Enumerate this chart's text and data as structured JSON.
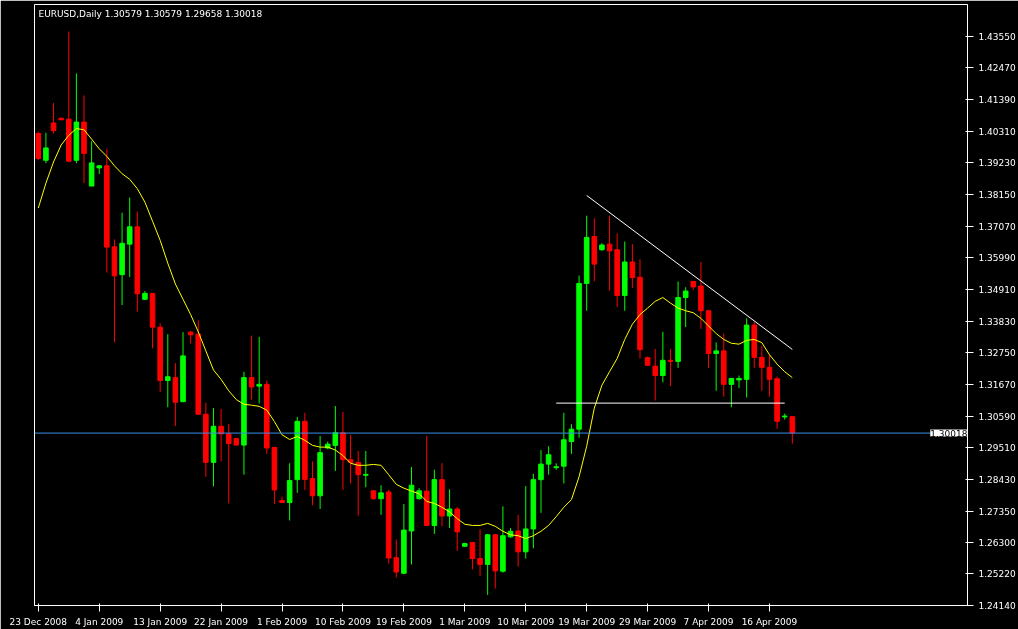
{
  "chart_data": {
    "type": "candlestick",
    "title": "EURUSD,Daily  1.30579 1.30579 1.29658 1.30018",
    "categories": [
      "23 Dec 2008",
      null,
      null,
      null,
      null,
      null,
      null,
      null,
      "4 Jan 2009",
      null,
      null,
      null,
      null,
      null,
      null,
      null,
      "13 Jan 2009",
      null,
      null,
      null,
      null,
      null,
      null,
      null,
      "22 Jan 2009",
      null,
      null,
      null,
      null,
      null,
      null,
      null,
      "1 Feb 2009",
      null,
      null,
      null,
      null,
      null,
      null,
      null,
      "10 Feb 2009",
      null,
      null,
      null,
      null,
      null,
      null,
      null,
      "19 Feb 2009",
      null,
      null,
      null,
      null,
      null,
      null,
      null,
      "1 Mar 2009",
      null,
      null,
      null,
      null,
      null,
      null,
      null,
      "10 Mar 2009",
      null,
      null,
      null,
      null,
      null,
      null,
      null,
      "19 Mar 2009",
      null,
      null,
      null,
      null,
      null,
      null,
      null,
      "29 Mar 2009",
      null,
      null,
      null,
      null,
      null,
      null,
      null,
      "7 Apr 2009",
      null,
      null,
      null,
      null,
      null,
      null,
      null,
      "16 Apr 2009",
      null,
      null,
      null
    ],
    "ohlc": [
      [
        1.4023,
        1.403,
        1.3932,
        1.3938
      ],
      [
        1.3932,
        1.4026,
        1.3922,
        1.3974
      ],
      [
        1.4059,
        1.4127,
        1.4023,
        1.4033
      ],
      [
        1.4075,
        1.4078,
        1.4069,
        1.407
      ],
      [
        1.4072,
        1.4371,
        1.3925,
        1.3929
      ],
      [
        1.3932,
        1.4228,
        1.3922,
        1.4062
      ],
      [
        1.4062,
        1.4153,
        1.3854,
        1.3955
      ],
      [
        1.3844,
        1.3997,
        1.3844,
        1.3923
      ],
      [
        1.3906,
        1.3915,
        1.3885,
        1.3913
      ],
      [
        1.3913,
        1.3971,
        1.3549,
        1.3636
      ],
      [
        1.3637,
        1.3662,
        1.3311,
        1.3538
      ],
      [
        1.3542,
        1.3753,
        1.3438,
        1.3649
      ],
      [
        1.3646,
        1.3805,
        1.3534,
        1.3705
      ],
      [
        1.3705,
        1.3757,
        1.3416,
        1.3477
      ],
      [
        1.3458,
        1.3486,
        1.3456,
        1.3478
      ],
      [
        1.3478,
        1.3478,
        1.3291,
        1.3363
      ],
      [
        1.3363,
        1.3376,
        1.3142,
        1.3181
      ],
      [
        1.3181,
        1.3339,
        1.309,
        1.3194
      ],
      [
        1.3191,
        1.324,
        1.3026,
        1.3107
      ],
      [
        1.3109,
        1.3346,
        1.3107,
        1.3265
      ],
      [
        1.3346,
        1.335,
        1.3307,
        1.3337
      ],
      [
        1.3339,
        1.3386,
        1.3066,
        1.3066
      ],
      [
        1.3066,
        1.3105,
        1.2853,
        1.2902
      ],
      [
        1.2902,
        1.3087,
        1.282,
        1.3025
      ],
      [
        1.3025,
        1.3084,
        1.2905,
        1.2999
      ],
      [
        1.2999,
        1.3033,
        1.2762,
        1.2966
      ],
      [
        1.2983,
        1.2986,
        1.296,
        1.2961
      ],
      [
        1.2961,
        1.3211,
        1.286,
        1.3191
      ],
      [
        1.3191,
        1.3334,
        1.3116,
        1.3159
      ],
      [
        1.3162,
        1.333,
        1.3103,
        1.3168
      ],
      [
        1.3168,
        1.3181,
        1.2931,
        1.2951
      ],
      [
        1.2953,
        1.2953,
        1.276,
        1.2808
      ],
      [
        1.2772,
        1.2785,
        1.2765,
        1.2765
      ],
      [
        1.2765,
        1.2899,
        1.2704,
        1.284
      ],
      [
        1.2843,
        1.3057,
        1.2798,
        1.3042
      ],
      [
        1.3042,
        1.3071,
        1.2808,
        1.2844
      ],
      [
        1.2847,
        1.2905,
        1.2756,
        1.2788
      ],
      [
        1.2788,
        1.2992,
        1.2743,
        1.2935
      ],
      [
        1.2951,
        1.2973,
        1.2947,
        1.2964
      ],
      [
        1.296,
        1.3094,
        1.2873,
        1.3003
      ],
      [
        1.3003,
        1.3074,
        1.2808,
        1.2911
      ],
      [
        1.2911,
        1.2996,
        1.283,
        1.2902
      ],
      [
        1.2902,
        1.2941,
        1.272,
        1.286
      ],
      [
        1.2858,
        1.2941,
        1.2817,
        1.2861
      ],
      [
        1.2805,
        1.2808,
        1.2775,
        1.2778
      ],
      [
        1.2778,
        1.2824,
        1.2723,
        1.2798
      ],
      [
        1.2801,
        1.2808,
        1.2557,
        1.2576
      ],
      [
        1.2577,
        1.2639,
        1.2509,
        1.2528
      ],
      [
        1.2524,
        1.276,
        1.2521,
        1.2671
      ],
      [
        1.2668,
        1.2886,
        1.2554,
        1.2824
      ],
      [
        1.2778,
        1.2814,
        1.2775,
        1.2805
      ],
      [
        1.2804,
        1.2993,
        1.2687,
        1.2687
      ],
      [
        1.2687,
        1.2877,
        1.2658,
        1.2843
      ],
      [
        1.2843,
        1.2899,
        1.2684,
        1.2719
      ],
      [
        1.2719,
        1.281,
        1.2678,
        1.2743
      ],
      [
        1.2743,
        1.2749,
        1.26,
        1.2665
      ],
      [
        1.2616,
        1.2628,
        1.2616,
        1.2625
      ],
      [
        1.2629,
        1.2629,
        1.2537,
        1.2574
      ],
      [
        1.2574,
        1.2674,
        1.2515,
        1.2554
      ],
      [
        1.2554,
        1.2658,
        1.245,
        1.2655
      ],
      [
        1.2655,
        1.2658,
        1.2472,
        1.2532
      ],
      [
        1.2531,
        1.2752,
        1.2526,
        1.2652
      ],
      [
        1.2648,
        1.2678,
        1.2645,
        1.2667
      ],
      [
        1.2668,
        1.2723,
        1.2547,
        1.2597
      ],
      [
        1.2597,
        1.2821,
        1.2574,
        1.2675
      ],
      [
        1.2675,
        1.2863,
        1.2609,
        1.2843
      ],
      [
        1.2843,
        1.2944,
        1.273,
        1.2896
      ],
      [
        1.2896,
        1.2957,
        1.286,
        1.2928
      ],
      [
        1.2884,
        1.2899,
        1.2877,
        1.2887
      ],
      [
        1.2889,
        1.3071,
        1.283,
        1.2979
      ],
      [
        1.2973,
        1.3032,
        1.2931,
        1.3015
      ],
      [
        1.3015,
        1.3539,
        1.2986,
        1.3512
      ],
      [
        1.3512,
        1.3743,
        1.3419,
        1.3669
      ],
      [
        1.3672,
        1.3734,
        1.3519,
        1.3578
      ],
      [
        1.3627,
        1.3649,
        1.3623,
        1.3643
      ],
      [
        1.3646,
        1.3743,
        1.3487,
        1.3623
      ],
      [
        1.3627,
        1.3682,
        1.3432,
        1.3471
      ],
      [
        1.3471,
        1.3655,
        1.3419,
        1.3585
      ],
      [
        1.3585,
        1.3646,
        1.3497,
        1.3532
      ],
      [
        1.3533,
        1.3594,
        1.3256,
        1.3286
      ],
      [
        1.3259,
        1.3263,
        1.3233,
        1.3233
      ],
      [
        1.323,
        1.3289,
        1.3113,
        1.3198
      ],
      [
        1.3198,
        1.3347,
        1.3175,
        1.325
      ],
      [
        1.325,
        1.3289,
        1.3162,
        1.3246
      ],
      [
        1.3246,
        1.3519,
        1.3224,
        1.3464
      ],
      [
        1.3464,
        1.3499,
        1.3363,
        1.3486
      ],
      [
        1.3519,
        1.3519,
        1.349,
        1.35
      ],
      [
        1.3503,
        1.3585,
        1.3357,
        1.3419
      ],
      [
        1.3419,
        1.3422,
        1.3224,
        1.3273
      ],
      [
        1.3273,
        1.3311,
        1.3146,
        1.3282
      ],
      [
        1.3282,
        1.3341,
        1.3126,
        1.3168
      ],
      [
        1.3168,
        1.3188,
        1.309,
        1.3188
      ],
      [
        1.3183,
        1.3198,
        1.3155,
        1.3188
      ],
      [
        1.3185,
        1.3393,
        1.3123,
        1.337
      ],
      [
        1.337,
        1.338,
        1.3224,
        1.326
      ],
      [
        1.326,
        1.3299,
        1.3146,
        1.3226
      ],
      [
        1.3226,
        1.3269,
        1.3126,
        1.3185
      ],
      [
        1.3187,
        1.3195,
        1.3016,
        1.3042
      ],
      [
        1.3057,
        1.3068,
        1.3048,
        1.306
      ],
      [
        1.30579,
        1.30579,
        1.29658,
        1.30018
      ]
    ],
    "colors": [
      "#ff0000",
      "#00ff00",
      "#ff0000",
      "#ff0000",
      "#ff0000",
      "#00ff00",
      "#ff0000",
      "#00ff00",
      "#00ff00",
      "#ff0000",
      "#ff0000",
      "#00ff00",
      "#00ff00",
      "#ff0000",
      "#00ff00",
      "#ff0000",
      "#ff0000",
      "#00ff00",
      "#ff0000",
      "#00ff00",
      "#ff0000",
      "#ff0000",
      "#ff0000",
      "#00ff00",
      "#ff0000",
      "#ff0000",
      "#ff0000",
      "#00ff00",
      "#ff0000",
      "#00ff00",
      "#ff0000",
      "#ff0000",
      "#ff0000",
      "#00ff00",
      "#00ff00",
      "#ff0000",
      "#ff0000",
      "#00ff00",
      "#00ff00",
      "#00ff00",
      "#ff0000",
      "#ff0000",
      "#ff0000",
      "#00ff00",
      "#ff0000",
      "#00ff00",
      "#ff0000",
      "#ff0000",
      "#00ff00",
      "#00ff00",
      "#00ff00",
      "#ff0000",
      "#00ff00",
      "#ff0000",
      "#00ff00",
      "#ff0000",
      "#00ff00",
      "#ff0000",
      "#ff0000",
      "#00ff00",
      "#ff0000",
      "#00ff00",
      "#00ff00",
      "#ff0000",
      "#00ff00",
      "#00ff00",
      "#00ff00",
      "#00ff00",
      "#00ff00",
      "#00ff00",
      "#00ff00",
      "#00ff00",
      "#00ff00",
      "#ff0000",
      "#00ff00",
      "#ff0000",
      "#ff0000",
      "#00ff00",
      "#ff0000",
      "#ff0000",
      "#ff0000",
      "#ff0000",
      "#00ff00",
      "#ff0000",
      "#00ff00",
      "#00ff00",
      "#ff0000",
      "#ff0000",
      "#ff0000",
      "#00ff00",
      "#ff0000",
      "#00ff00",
      "#00ff00",
      "#00ff00",
      "#ff0000",
      "#ff0000",
      "#ff0000",
      "#ff0000",
      "#00ff00",
      "#ff0000"
    ],
    "series": [
      {
        "type": "line",
        "color": "#ffff00",
        "values": [
          1.3769,
          1.3854,
          1.3926,
          1.3984,
          1.4017,
          1.404,
          1.4036,
          1.4004,
          1.3971,
          1.3945,
          1.3913,
          1.3886,
          1.3867,
          1.3835,
          1.3789,
          1.3724,
          1.3659,
          1.3581,
          1.351,
          1.3458,
          1.3406,
          1.3347,
          1.3282,
          1.3217,
          1.3185,
          1.3146,
          1.3116,
          1.31,
          1.3097,
          1.3093,
          1.308,
          1.3041,
          1.2996,
          1.298,
          1.299,
          1.2977,
          1.296,
          1.2954,
          1.2954,
          1.2944,
          1.2925,
          1.2899,
          1.2892,
          1.2892,
          1.2895,
          1.2892,
          1.286,
          1.2827,
          1.2814,
          1.2804,
          1.2795,
          1.2769,
          1.2762,
          1.2749,
          1.2733,
          1.271,
          1.2691,
          1.2687,
          1.2687,
          1.2694,
          1.2684,
          1.2667,
          1.2655,
          1.2652,
          1.2642,
          1.2652,
          1.2667,
          1.2687,
          1.2717,
          1.2749,
          1.2775,
          1.2853,
          1.2957,
          1.3087,
          1.3165,
          1.3211,
          1.3256,
          1.3321,
          1.3373,
          1.3406,
          1.3428,
          1.3451,
          1.3464,
          1.3445,
          1.3428,
          1.3419,
          1.3412,
          1.3393,
          1.3367,
          1.3341,
          1.3321,
          1.3308,
          1.3305,
          1.3318,
          1.3321,
          1.331,
          1.3269,
          1.3237,
          1.3211,
          1.3191
        ]
      },
      {
        "type": "line",
        "color": "#ffffff",
        "values": [
          null,
          null,
          null,
          null,
          null,
          null,
          null,
          null,
          null,
          null,
          null,
          null,
          null,
          null,
          null,
          null,
          null,
          null,
          null,
          null,
          null,
          null,
          null,
          null,
          null,
          null,
          null,
          null,
          null,
          null,
          null,
          null,
          null,
          null,
          null,
          null,
          null,
          null,
          null,
          null,
          null,
          null,
          null,
          null,
          null,
          null,
          null,
          null,
          null,
          null,
          null,
          null,
          null,
          null,
          null,
          null,
          null,
          null,
          null,
          null,
          null,
          null,
          null,
          null,
          null,
          null,
          null,
          null,
          null,
          null,
          null,
          null,
          1.3812,
          null,
          null,
          null,
          null,
          null,
          null,
          null,
          null,
          null,
          null,
          null,
          null,
          null,
          null,
          null,
          null,
          null,
          null,
          null,
          null,
          null,
          null,
          null,
          null,
          null,
          null,
          1.3287
        ]
      },
      {
        "type": "line",
        "color": "#ffffff",
        "values": [
          null,
          null,
          null,
          null,
          null,
          null,
          null,
          null,
          null,
          null,
          null,
          null,
          null,
          null,
          null,
          null,
          null,
          null,
          null,
          null,
          null,
          null,
          null,
          null,
          null,
          null,
          null,
          null,
          null,
          null,
          null,
          null,
          null,
          null,
          null,
          null,
          null,
          null,
          null,
          null,
          null,
          null,
          null,
          null,
          null,
          null,
          null,
          null,
          null,
          null,
          null,
          null,
          null,
          null,
          null,
          null,
          null,
          null,
          null,
          null,
          null,
          null,
          null,
          null,
          null,
          null,
          null,
          null,
          1.3104,
          null,
          null,
          null,
          null,
          null,
          null,
          null,
          null,
          null,
          null,
          null,
          null,
          null,
          null,
          null,
          null,
          null,
          null,
          null,
          null,
          null,
          null,
          null,
          null,
          null,
          null,
          null,
          null,
          null,
          1.3104,
          null
        ]
      }
    ],
    "ylim": [
      1.2414,
      1.4463
    ],
    "yticks": [
      {
        "value": 1.2414,
        "label": "1.24140"
      },
      {
        "value": 1.2522,
        "label": "1.25220"
      },
      {
        "value": 1.263,
        "label": "1.26300"
      },
      {
        "value": 1.2735,
        "label": "1.27350"
      },
      {
        "value": 1.2843,
        "label": "1.28430"
      },
      {
        "value": 1.2951,
        "label": "1.29510"
      },
      {
        "value": 1.3059,
        "label": "1.30590"
      },
      {
        "value": 1.3167,
        "label": "1.31670"
      },
      {
        "value": 1.3275,
        "label": "1.32750"
      },
      {
        "value": 1.3383,
        "label": "1.33830"
      },
      {
        "value": 1.3491,
        "label": "1.34910"
      },
      {
        "value": 1.3599,
        "label": "1.35990"
      },
      {
        "value": 1.3707,
        "label": "1.37070"
      },
      {
        "value": 1.3815,
        "label": "1.38150"
      },
      {
        "value": 1.3923,
        "label": "1.39230"
      },
      {
        "value": 1.4031,
        "label": "1.40310"
      },
      {
        "value": 1.4139,
        "label": "1.41390"
      },
      {
        "value": 1.4247,
        "label": "1.42470"
      },
      {
        "value": 1.4355,
        "label": "1.43550"
      }
    ],
    "ref_lines": [
      {
        "axis": "y",
        "value": 1.30018,
        "label": "1.30018",
        "color": "#3a8ee6"
      }
    ],
    "grid": false
  }
}
